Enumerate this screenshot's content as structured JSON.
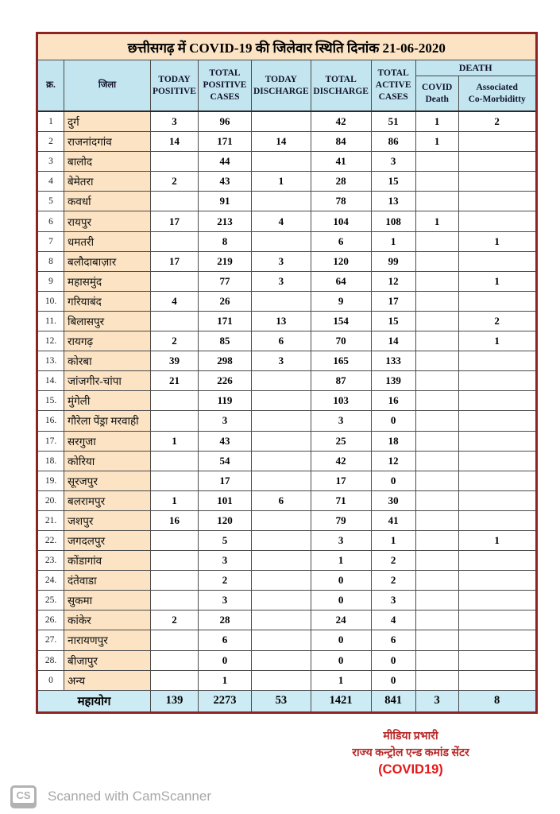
{
  "title": "छत्तीसगढ़ में COVID-19 की  जिलेवार स्थिति दिनांक 21-06-2020",
  "table": {
    "headers": {
      "serial": "क्र.",
      "district": "जिला",
      "today_positive": "TODAY\nPOSITIVE",
      "total_positive": "TOTAL\nPOSITIVE\nCASES",
      "today_discharge": "TODAY\nDISCHARGE",
      "total_discharge": "TOTAL\nDISCHARGE",
      "total_active": "TOTAL\nACTIVE\nCASES",
      "death": "DEATH",
      "covid_death": "COVID\nDeath",
      "co_morbidity": "Associated\nCo-Morbiditty"
    },
    "rows": [
      [
        "1",
        "दुर्ग",
        "3",
        "96",
        "",
        "42",
        "51",
        "1",
        "2"
      ],
      [
        "2",
        "राजनांदगांव",
        "14",
        "171",
        "14",
        "84",
        "86",
        "1",
        ""
      ],
      [
        "3",
        "बालोद",
        "",
        "44",
        "",
        "41",
        "3",
        "",
        ""
      ],
      [
        "4",
        "बेमेतरा",
        "2",
        "43",
        "1",
        "28",
        "15",
        "",
        ""
      ],
      [
        "5",
        "कवर्धा",
        "",
        "91",
        "",
        "78",
        "13",
        "",
        ""
      ],
      [
        "6",
        "रायपुर",
        "17",
        "213",
        "4",
        "104",
        "108",
        "1",
        ""
      ],
      [
        "7",
        "धमतरी",
        "",
        "8",
        "",
        "6",
        "1",
        "",
        "1"
      ],
      [
        "8",
        "बलौदाबाज़ार",
        "17",
        "219",
        "3",
        "120",
        "99",
        "",
        ""
      ],
      [
        "9",
        "महासमुंद",
        "",
        "77",
        "3",
        "64",
        "12",
        "",
        "1"
      ],
      [
        "10.",
        "गरियाबंद",
        "4",
        "26",
        "",
        "9",
        "17",
        "",
        ""
      ],
      [
        "11.",
        "बिलासपुर",
        "",
        "171",
        "13",
        "154",
        "15",
        "",
        "2"
      ],
      [
        "12.",
        "रायगढ़",
        "2",
        "85",
        "6",
        "70",
        "14",
        "",
        "1"
      ],
      [
        "13.",
        "कोरबा",
        "39",
        "298",
        "3",
        "165",
        "133",
        "",
        ""
      ],
      [
        "14.",
        "जांजगीर-चांपा",
        "21",
        "226",
        "",
        "87",
        "139",
        "",
        ""
      ],
      [
        "15.",
        "मुंगेली",
        "",
        "119",
        "",
        "103",
        "16",
        "",
        ""
      ],
      [
        "16.",
        "गौरेला पेंड्रा मरवाही",
        "",
        "3",
        "",
        "3",
        "0",
        "",
        ""
      ],
      [
        "17.",
        "सरगुजा",
        "1",
        "43",
        "",
        "25",
        "18",
        "",
        ""
      ],
      [
        "18.",
        "कोरिया",
        "",
        "54",
        "",
        "42",
        "12",
        "",
        ""
      ],
      [
        "19.",
        "सूरजपुर",
        "",
        "17",
        "",
        "17",
        "0",
        "",
        ""
      ],
      [
        "20.",
        "बलरामपुर",
        "1",
        "101",
        "6",
        "71",
        "30",
        "",
        ""
      ],
      [
        "21.",
        "जशपुर",
        "16",
        "120",
        "",
        "79",
        "41",
        "",
        ""
      ],
      [
        "22.",
        "जगदलपुर",
        "",
        "5",
        "",
        "3",
        "1",
        "",
        "1"
      ],
      [
        "23.",
        "कोंडागांव",
        "",
        "3",
        "",
        "1",
        "2",
        "",
        ""
      ],
      [
        "24.",
        "दंतेवाडा",
        "",
        "2",
        "",
        "0",
        "2",
        "",
        ""
      ],
      [
        "25.",
        "सुकमा",
        "",
        "3",
        "",
        "0",
        "3",
        "",
        ""
      ],
      [
        "26.",
        "कांकेर",
        "2",
        "28",
        "",
        "24",
        "4",
        "",
        ""
      ],
      [
        "27.",
        "नारायणपुर",
        "",
        "6",
        "",
        "0",
        "6",
        "",
        ""
      ],
      [
        "28.",
        "बीजापुर",
        "",
        "0",
        "",
        "0",
        "0",
        "",
        ""
      ],
      [
        "0",
        "अन्य",
        "",
        "1",
        "",
        "1",
        "0",
        "",
        ""
      ]
    ],
    "total": {
      "label": "महायोग",
      "values": [
        "139",
        "2273",
        "53",
        "1421",
        "841",
        "3",
        "8"
      ]
    }
  },
  "signature": {
    "line1": "मीडिया प्रभारी",
    "line2": "राज्य कन्ट्रोल एन्ड कमांड सेंटर",
    "line3": "(COVID19)"
  },
  "scanner": {
    "icon": "CS",
    "text": "Scanned with CamScanner"
  },
  "colors": {
    "outer_border": "#8e2323",
    "title_bg": "#fbe3c3",
    "header_bg": "#c2e5f0",
    "district_bg": "#fbe3c3",
    "total_bg": "#cdebf5",
    "signature_red": "#b92a2a",
    "covid19_red": "#e51717"
  }
}
